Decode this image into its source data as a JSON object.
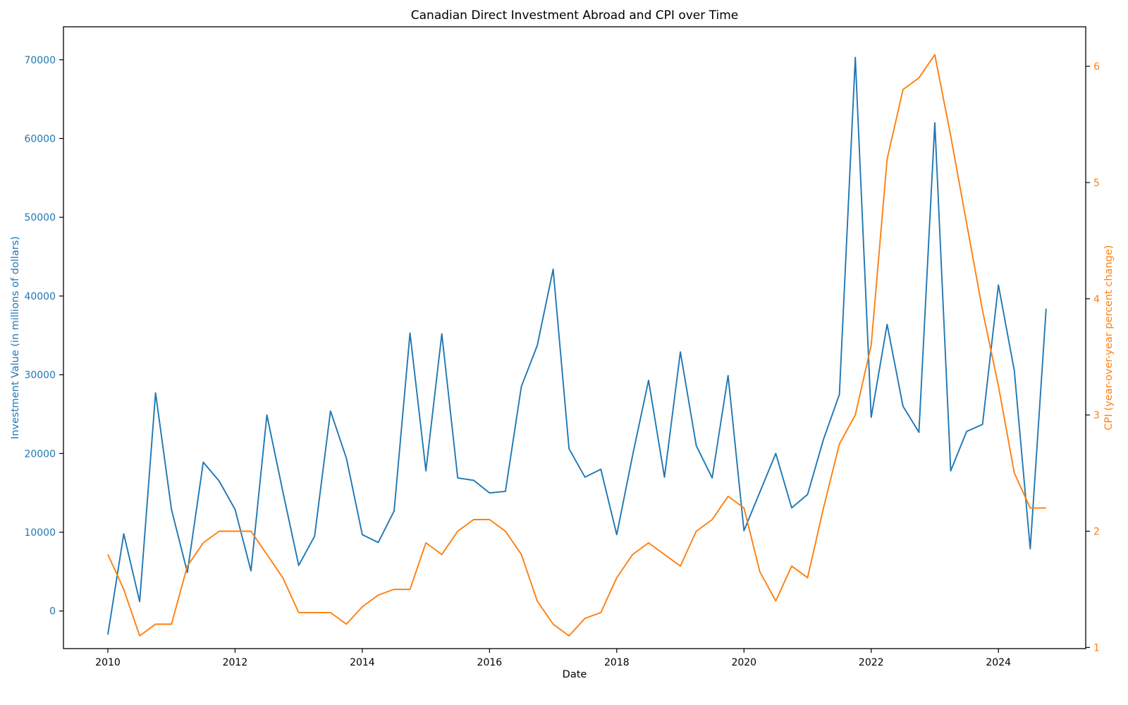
{
  "chart_data": {
    "type": "line",
    "title": "Canadian Direct Investment Abroad and CPI over Time",
    "xlabel": "Date",
    "ylabel_left": "Investment Value (in millions of dollars)",
    "ylabel_right": "CPI (year-over-year percent change)",
    "grid": false,
    "legend": "none",
    "x_frequency": "quarterly",
    "x": [
      2010.0,
      2010.25,
      2010.5,
      2010.75,
      2011.0,
      2011.25,
      2011.5,
      2011.75,
      2012.0,
      2012.25,
      2012.5,
      2012.75,
      2013.0,
      2013.25,
      2013.5,
      2013.75,
      2014.0,
      2014.25,
      2014.5,
      2014.75,
      2015.0,
      2015.25,
      2015.5,
      2015.75,
      2016.0,
      2016.25,
      2016.5,
      2016.75,
      2017.0,
      2017.25,
      2017.5,
      2017.75,
      2018.0,
      2018.25,
      2018.5,
      2018.75,
      2019.0,
      2019.25,
      2019.5,
      2019.75,
      2020.0,
      2020.25,
      2020.5,
      2020.75,
      2021.0,
      2021.25,
      2021.5,
      2021.75,
      2022.0,
      2022.25,
      2022.5,
      2022.75,
      2023.0,
      2023.25,
      2023.5,
      2023.75,
      2024.0,
      2024.25,
      2024.5,
      2024.75
    ],
    "series": [
      {
        "name": "Investment Value",
        "axis": "left",
        "color": "#1f77b4",
        "values": [
          -3000,
          9800,
          1200,
          27700,
          12900,
          4900,
          18900,
          16500,
          12900,
          5100,
          24900,
          15200,
          5800,
          9500,
          25400,
          19400,
          9700,
          8700,
          12700,
          35300,
          17800,
          35200,
          16900,
          16600,
          15000,
          15200,
          28500,
          33700,
          43400,
          20600,
          17000,
          18000,
          9700,
          19800,
          29300,
          17000,
          32900,
          21000,
          16900,
          29900,
          10200,
          15100,
          20000,
          13100,
          14800,
          21800,
          27500,
          70300,
          24600,
          36400,
          26000,
          22700,
          62000,
          17800,
          22800,
          23700,
          41400,
          30500,
          7900,
          38400
        ]
      },
      {
        "name": "CPI",
        "axis": "right",
        "color": "#ff7f0e",
        "values": [
          1.8,
          1.5,
          1.1,
          1.2,
          1.2,
          1.7,
          1.9,
          2.0,
          2.0,
          2.0,
          1.8,
          1.6,
          1.3,
          1.3,
          1.3,
          1.2,
          1.35,
          1.45,
          1.5,
          1.5,
          1.9,
          1.8,
          2.0,
          2.1,
          2.1,
          2.0,
          1.8,
          1.4,
          1.2,
          1.1,
          1.25,
          1.3,
          1.6,
          1.8,
          1.9,
          1.8,
          1.7,
          2.0,
          2.1,
          2.3,
          2.2,
          1.65,
          1.4,
          1.7,
          1.6,
          2.2,
          2.75,
          3.0,
          3.6,
          5.2,
          5.8,
          5.9,
          6.1,
          5.4,
          4.65,
          3.9,
          3.25,
          2.5,
          2.2,
          2.2
        ]
      }
    ],
    "axes": {
      "x": {
        "range": [
          2009.302,
          2025.372
        ],
        "ticks": [
          2010,
          2012,
          2014,
          2016,
          2018,
          2020,
          2022,
          2024
        ],
        "tick_labels": [
          "2010",
          "2012",
          "2014",
          "2016",
          "2018",
          "2020",
          "2022",
          "2024"
        ],
        "tick_color": "#000000"
      },
      "left": {
        "range": [
          -4772,
          74188
        ],
        "ticks": [
          0,
          10000,
          20000,
          30000,
          40000,
          50000,
          60000,
          70000
        ],
        "tick_labels": [
          "0",
          "10000",
          "20000",
          "30000",
          "40000",
          "50000",
          "60000",
          "70000"
        ],
        "tick_color": "#1f77b4"
      },
      "right": {
        "range": [
          0.99,
          6.34
        ],
        "ticks": [
          1,
          2,
          3,
          4,
          5,
          6
        ],
        "tick_labels": [
          "1",
          "2",
          "3",
          "4",
          "5",
          "6"
        ],
        "tick_color": "#ff7f0e"
      }
    }
  }
}
